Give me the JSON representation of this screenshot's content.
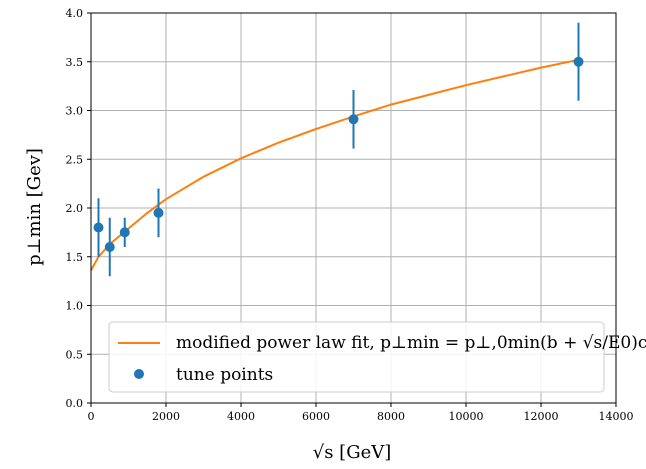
{
  "chart_data": {
    "type": "scatter",
    "xlabel": "√s [GeV]",
    "ylabel": "p⊥min [Gev]",
    "xlim": [
      0,
      14000
    ],
    "ylim": [
      0.0,
      4.0
    ],
    "xticks": [
      0,
      2000,
      4000,
      6000,
      8000,
      10000,
      12000,
      14000
    ],
    "yticks": [
      0.0,
      0.5,
      1.0,
      1.5,
      2.0,
      2.5,
      3.0,
      3.5,
      4.0
    ],
    "xtick_labels": [
      "0",
      "2000",
      "4000",
      "6000",
      "8000",
      "10000",
      "12000",
      "14000"
    ],
    "ytick_labels": [
      "0.0",
      "0.5",
      "1.0",
      "1.5",
      "2.0",
      "2.5",
      "3.0",
      "3.5",
      "4.0"
    ],
    "grid": true,
    "legend_position": "lower right",
    "series": [
      {
        "name": "modified power law fit, p⊥min = p⊥,0min(b + √s/E0)c",
        "kind": "line",
        "color": "#ff7f0e",
        "x": [
          0,
          200,
          500,
          1000,
          1500,
          2000,
          3000,
          4000,
          5000,
          6000,
          7000,
          8000,
          9000,
          10000,
          11000,
          12000,
          13000
        ],
        "y": [
          1.36,
          1.5,
          1.63,
          1.79,
          1.95,
          2.09,
          2.32,
          2.51,
          2.67,
          2.81,
          2.94,
          3.06,
          3.16,
          3.26,
          3.35,
          3.44,
          3.52
        ]
      },
      {
        "name": "tune points",
        "kind": "errorbar",
        "color": "#1f77b4",
        "x": [
          200,
          500,
          900,
          1800,
          7000,
          13000
        ],
        "y": [
          1.8,
          1.6,
          1.75,
          1.95,
          2.91,
          3.5
        ],
        "yerr": [
          0.3,
          0.3,
          0.15,
          0.25,
          0.3,
          0.4
        ]
      }
    ]
  }
}
